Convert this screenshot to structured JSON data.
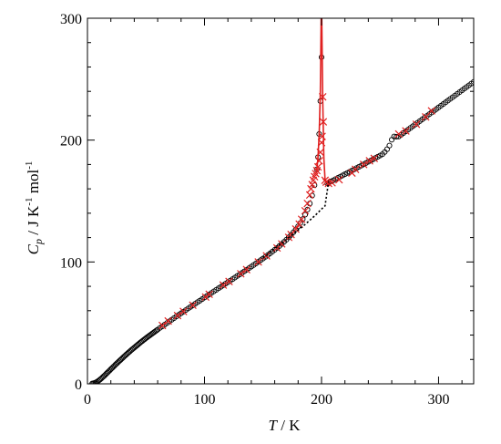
{
  "chart_data": {
    "type": "scatter",
    "xlabel": {
      "symbol": "T",
      "unit": " / K"
    },
    "ylabel": {
      "symbol": "C",
      "subscript": "p",
      "unit": " / J K",
      "sup1": "-1",
      "mid": " mol",
      "sup2": "-1"
    },
    "xlim": [
      0,
      330
    ],
    "ylim": [
      0,
      300
    ],
    "x_ticks": [
      0,
      100,
      200,
      300
    ],
    "y_ticks": [
      0,
      100,
      200,
      300
    ],
    "x_tick_labels": [
      "0",
      "100",
      "200",
      "300"
    ],
    "y_tick_labels": [
      "0",
      "100",
      "200",
      "300"
    ],
    "grid": false,
    "colors": {
      "open_circles": "#000000",
      "crosses": "#e02020",
      "red_line": "#e02020",
      "baseline": "#000000"
    },
    "series": [
      {
        "marker": "open-circle",
        "color": "#000000",
        "points": [
          [
            4,
            0.2
          ],
          [
            5,
            0.4
          ],
          [
            6,
            0.7
          ],
          [
            7,
            1.1
          ],
          [
            8,
            1.6
          ],
          [
            9,
            2.2
          ],
          [
            10,
            2.9
          ],
          [
            11,
            3.7
          ],
          [
            12,
            4.5
          ],
          [
            13,
            5.4
          ],
          [
            14,
            6.3
          ],
          [
            15,
            7.2
          ],
          [
            16,
            8.2
          ],
          [
            17,
            9.1
          ],
          [
            18,
            10.1
          ],
          [
            19,
            11.0
          ],
          [
            20,
            12.0
          ],
          [
            21,
            12.9
          ],
          [
            22,
            13.9
          ],
          [
            23,
            14.8
          ],
          [
            24,
            15.8
          ],
          [
            25,
            16.7
          ],
          [
            26,
            17.6
          ],
          [
            27,
            18.5
          ],
          [
            28,
            19.4
          ],
          [
            29,
            20.3
          ],
          [
            30,
            21.2
          ],
          [
            31,
            22.1
          ],
          [
            32,
            23.0
          ],
          [
            33,
            23.9
          ],
          [
            34,
            24.7
          ],
          [
            35,
            25.6
          ],
          [
            36,
            26.4
          ],
          [
            37,
            27.3
          ],
          [
            38,
            28.1
          ],
          [
            39,
            28.9
          ],
          [
            40,
            29.7
          ],
          [
            41,
            30.5
          ],
          [
            42,
            31.3
          ],
          [
            43,
            32.1
          ],
          [
            44,
            32.9
          ],
          [
            45,
            33.7
          ],
          [
            46,
            34.5
          ],
          [
            47,
            35.2
          ],
          [
            48,
            36.0
          ],
          [
            49,
            36.7
          ],
          [
            50,
            37.5
          ],
          [
            51,
            38.2
          ],
          [
            52,
            38.9
          ],
          [
            53,
            39.6
          ],
          [
            54,
            40.3
          ],
          [
            55,
            41.0
          ],
          [
            56,
            41.7
          ],
          [
            57,
            42.4
          ],
          [
            58,
            43.1
          ],
          [
            59,
            43.8
          ],
          [
            60,
            44.5
          ],
          [
            62,
            45.9
          ],
          [
            64,
            47.2
          ],
          [
            66,
            48.6
          ],
          [
            68,
            49.9
          ],
          [
            70,
            51.3
          ],
          [
            72,
            52.6
          ],
          [
            74,
            53.9
          ],
          [
            76,
            55.3
          ],
          [
            78,
            56.6
          ],
          [
            80,
            57.9
          ],
          [
            82,
            59.2
          ],
          [
            84,
            60.5
          ],
          [
            86,
            61.8
          ],
          [
            88,
            63.1
          ],
          [
            90,
            64.4
          ],
          [
            92,
            65.7
          ],
          [
            94,
            67.0
          ],
          [
            96,
            68.2
          ],
          [
            98,
            69.5
          ],
          [
            100,
            70.8
          ],
          [
            102,
            72.1
          ],
          [
            104,
            73.3
          ],
          [
            106,
            74.6
          ],
          [
            108,
            75.9
          ],
          [
            110,
            77.1
          ],
          [
            112,
            78.4
          ],
          [
            114,
            79.6
          ],
          [
            116,
            80.9
          ],
          [
            118,
            82.2
          ],
          [
            120,
            83.4
          ],
          [
            122,
            84.7
          ],
          [
            124,
            85.9
          ],
          [
            126,
            87.2
          ],
          [
            128,
            88.5
          ],
          [
            130,
            89.7
          ],
          [
            132,
            91.0
          ],
          [
            134,
            92.3
          ],
          [
            136,
            93.6
          ],
          [
            138,
            94.9
          ],
          [
            140,
            96.2
          ],
          [
            142,
            97.5
          ],
          [
            144,
            98.8
          ],
          [
            146,
            100.1
          ],
          [
            148,
            101.5
          ],
          [
            150,
            102.8
          ],
          [
            152,
            104.2
          ],
          [
            154,
            105.6
          ],
          [
            156,
            107.0
          ],
          [
            158,
            108.5
          ],
          [
            160,
            110.0
          ],
          [
            162,
            111.5
          ],
          [
            164,
            113.1
          ],
          [
            166,
            114.8
          ],
          [
            168,
            116.5
          ],
          [
            170,
            118.3
          ],
          [
            172,
            120.2
          ],
          [
            174,
            122.2
          ],
          [
            176,
            124.4
          ],
          [
            178,
            126.7
          ],
          [
            180,
            129.2
          ],
          [
            182,
            132.0
          ],
          [
            184,
            135.2
          ],
          [
            186,
            138.8
          ],
          [
            188,
            143.0
          ],
          [
            190,
            148.0
          ],
          [
            192,
            154.5
          ],
          [
            194,
            163.0
          ],
          [
            196,
            176.0
          ],
          [
            197,
            186.0
          ],
          [
            198,
            205.0
          ],
          [
            199,
            232.0
          ],
          [
            200,
            268.0
          ],
          [
            205,
            164.5
          ],
          [
            206,
            165.0
          ],
          [
            208,
            166.0
          ],
          [
            210,
            167.0
          ],
          [
            212,
            168.0
          ],
          [
            214,
            169.0
          ],
          [
            216,
            170.0
          ],
          [
            218,
            171.0
          ],
          [
            220,
            172.0
          ],
          [
            222,
            173.0
          ],
          [
            224,
            174.0
          ],
          [
            226,
            175.0
          ],
          [
            228,
            176.0
          ],
          [
            230,
            177.1
          ],
          [
            232,
            178.1
          ],
          [
            234,
            179.1
          ],
          [
            236,
            180.1
          ],
          [
            238,
            181.2
          ],
          [
            240,
            182.2
          ],
          [
            242,
            183.2
          ],
          [
            244,
            184.2
          ],
          [
            246,
            185.3
          ],
          [
            248,
            186.3
          ],
          [
            250,
            187.3
          ],
          [
            252,
            188.4
          ],
          [
            254,
            190.2
          ],
          [
            256,
            192.5
          ],
          [
            258,
            195.5
          ],
          [
            260,
            200.3
          ],
          [
            262,
            203.0
          ],
          [
            264,
            202.8
          ],
          [
            266,
            203.0
          ],
          [
            268,
            204.4
          ],
          [
            270,
            205.8
          ],
          [
            272,
            207.2
          ],
          [
            274,
            208.6
          ],
          [
            276,
            210.0
          ],
          [
            278,
            211.4
          ],
          [
            280,
            212.8
          ],
          [
            282,
            214.2
          ],
          [
            284,
            215.6
          ],
          [
            286,
            217.0
          ],
          [
            288,
            218.4
          ],
          [
            290,
            219.8
          ],
          [
            292,
            221.2
          ],
          [
            294,
            222.6
          ],
          [
            296,
            224.0
          ],
          [
            298,
            225.4
          ],
          [
            300,
            226.8
          ],
          [
            302,
            228.2
          ],
          [
            304,
            229.6
          ],
          [
            306,
            231.0
          ],
          [
            308,
            232.4
          ],
          [
            310,
            233.8
          ],
          [
            312,
            235.2
          ],
          [
            314,
            236.6
          ],
          [
            316,
            238.0
          ],
          [
            318,
            239.4
          ],
          [
            320,
            240.8
          ],
          [
            322,
            242.2
          ],
          [
            324,
            243.6
          ],
          [
            326,
            245.0
          ],
          [
            328,
            246.4
          ],
          [
            330,
            247.8
          ]
        ]
      },
      {
        "marker": "cross",
        "color": "#e02020",
        "points": [
          [
            64,
            47.9
          ],
          [
            69,
            51.5
          ],
          [
            77,
            56.0
          ],
          [
            82,
            59.4
          ],
          [
            90,
            64.5
          ],
          [
            101,
            71.2
          ],
          [
            104,
            73.5
          ],
          [
            116,
            81.1
          ],
          [
            121,
            84.0
          ],
          [
            131,
            90.3
          ],
          [
            136,
            93.7
          ],
          [
            146,
            100.0
          ],
          [
            153,
            105.0
          ],
          [
            162,
            111.5
          ],
          [
            166,
            114.8
          ],
          [
            172,
            120.2
          ],
          [
            174,
            122.5
          ],
          [
            178,
            127.0
          ],
          [
            181,
            131.0
          ],
          [
            183,
            135.0
          ],
          [
            186,
            142.0
          ],
          [
            188,
            148.0
          ],
          [
            190,
            155.0
          ],
          [
            191,
            160.0
          ],
          [
            192,
            163.5
          ],
          [
            193,
            167.0
          ],
          [
            194,
            170.0
          ],
          [
            195,
            172.5
          ],
          [
            196,
            175.0
          ],
          [
            197,
            178.0
          ],
          [
            198,
            183.0
          ],
          [
            199,
            190.0
          ],
          [
            200,
            198.0
          ],
          [
            200.5,
            203.0
          ],
          [
            201,
            235.5
          ],
          [
            201.5,
            215.0
          ],
          [
            203,
            167.0
          ],
          [
            204,
            165.5
          ],
          [
            206,
            164.5
          ],
          [
            209,
            165.0
          ],
          [
            215,
            167.5
          ],
          [
            226,
            173.0
          ],
          [
            229,
            176.0
          ],
          [
            236,
            180.0
          ],
          [
            241,
            183.0
          ],
          [
            245,
            185.0
          ],
          [
            266,
            205.0
          ],
          [
            272,
            207.5
          ],
          [
            281,
            213.0
          ],
          [
            289,
            219.0
          ],
          [
            294,
            224.0
          ]
        ]
      },
      {
        "line": "solid",
        "color": "#e02020",
        "points": [
          [
            196,
            175
          ],
          [
            197,
            186
          ],
          [
            198,
            205
          ],
          [
            199,
            240
          ],
          [
            199.7,
            300
          ],
          [
            200.2,
            300
          ],
          [
            201,
            235
          ],
          [
            202,
            185
          ],
          [
            203,
            168
          ],
          [
            204,
            165.5
          ],
          [
            206,
            165.5
          ]
        ]
      },
      {
        "line": "dotted",
        "color": "#000000",
        "points": [
          [
            150,
            103.3
          ],
          [
            170,
            118.5
          ],
          [
            185,
            130.0
          ],
          [
            190,
            134.2
          ],
          [
            195,
            138.6
          ],
          [
            200,
            143.4
          ],
          [
            203,
            146.0
          ],
          [
            206,
            165.5
          ]
        ]
      }
    ]
  }
}
